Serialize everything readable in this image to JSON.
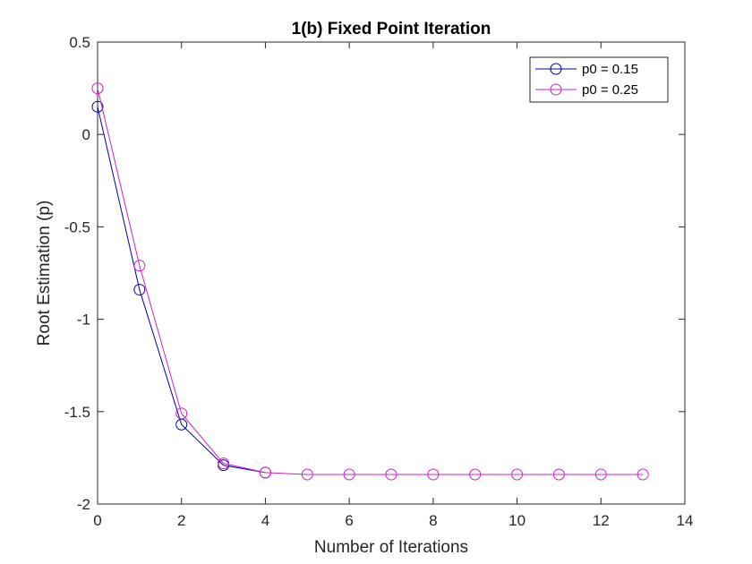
{
  "chart_data": {
    "type": "line",
    "title": "1(b) Fixed Point Iteration",
    "xlabel": "Number of Iterations",
    "ylabel": "Root Estimation (p)",
    "xlim": [
      0,
      14
    ],
    "ylim": [
      -2,
      0.5
    ],
    "xticks": [
      "0",
      "2",
      "4",
      "6",
      "8",
      "10",
      "12",
      "14"
    ],
    "yticks": [
      "0.5",
      "0",
      "-0.5",
      "-1",
      "-1.5",
      "-2"
    ],
    "grid": false,
    "legend_position": "top-right",
    "series": [
      {
        "name": "p0 = 0.15",
        "color": "#0000a0",
        "marker": "circle",
        "x": [
          0,
          1,
          2,
          3,
          4
        ],
        "y": [
          0.15,
          -0.84,
          -1.57,
          -1.79,
          -1.83
        ]
      },
      {
        "name": "p0 = 0.25",
        "color": "#d020d0",
        "marker": "circle",
        "x": [
          0,
          1,
          2,
          3,
          4,
          5,
          6,
          7,
          8,
          9,
          10,
          11,
          12,
          13
        ],
        "y": [
          0.25,
          -0.71,
          -1.51,
          -1.78,
          -1.83,
          -1.84,
          -1.84,
          -1.84,
          -1.84,
          -1.84,
          -1.84,
          -1.84,
          -1.84,
          -1.84
        ]
      }
    ]
  }
}
